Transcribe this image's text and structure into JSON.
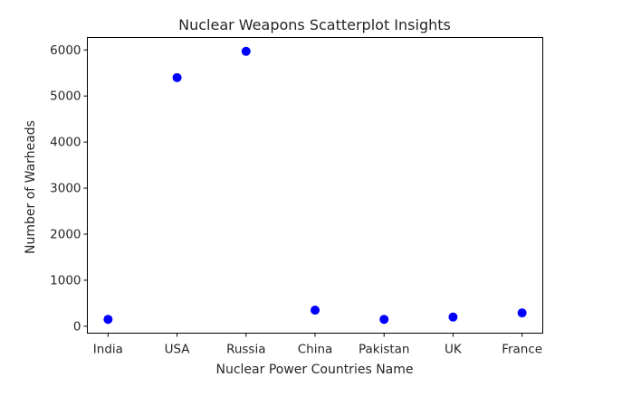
{
  "chart_data": {
    "type": "scatter",
    "title": "Nuclear Weapons Scatterplot Insights",
    "xlabel": "Nuclear Power Countries Name",
    "ylabel": "Number of Warheads",
    "categories": [
      "India",
      "USA",
      "Russia",
      "China",
      "Pakistan",
      "UK",
      "France"
    ],
    "values": [
      150,
      5400,
      5970,
      350,
      150,
      200,
      290
    ],
    "ylim": [
      -150,
      6270
    ],
    "yticks": [
      0,
      1000,
      2000,
      3000,
      4000,
      5000,
      6000
    ],
    "point_color": "#0000ff",
    "grid": false,
    "legend": false
  }
}
